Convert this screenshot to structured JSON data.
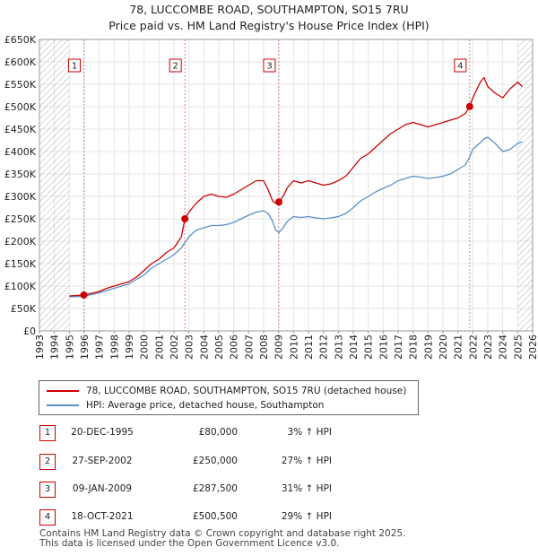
{
  "title_line1": "78, LUCCOMBE ROAD, SOUTHAMPTON, SO15 7RU",
  "title_line2": "Price paid vs. HM Land Registry's House Price Index (HPI)",
  "chart_data": {
    "type": "line",
    "title": "78, LUCCOMBE ROAD, SOUTHAMPTON, SO15 7RU — Price paid vs. HM Land Registry's House Price Index (HPI)",
    "xlabel": "",
    "ylabel": "",
    "xlim": [
      1993,
      2026
    ],
    "ylim": [
      0,
      650000
    ],
    "x_ticks": [
      "1993",
      "1994",
      "1995",
      "1996",
      "1997",
      "1998",
      "1999",
      "2000",
      "2001",
      "2002",
      "2003",
      "2004",
      "2005",
      "2006",
      "2007",
      "2008",
      "2009",
      "2010",
      "2011",
      "2012",
      "2013",
      "2014",
      "2015",
      "2016",
      "2017",
      "2018",
      "2019",
      "2020",
      "2021",
      "2022",
      "2023",
      "2024",
      "2025",
      "2026"
    ],
    "y_tick_values": [
      0,
      50000,
      100000,
      150000,
      200000,
      250000,
      300000,
      350000,
      400000,
      450000,
      500000,
      550000,
      600000,
      650000
    ],
    "y_tick_labels": [
      "£0",
      "£50K",
      "£100K",
      "£150K",
      "£200K",
      "£250K",
      "£300K",
      "£350K",
      "£400K",
      "£450K",
      "£500K",
      "£550K",
      "£600K",
      "£650K"
    ],
    "colors": {
      "property": "#cc0000",
      "hpi": "#5b8ec9",
      "hatch": "#b0b0b0",
      "vline": "#e08080"
    },
    "hatched_ranges": [
      [
        1993.0,
        1995.0
      ],
      [
        2025.0,
        2026.0
      ]
    ],
    "series": [
      {
        "name": "78, LUCCOMBE ROAD, SOUTHAMPTON, SO15 7RU (detached house)",
        "color": "#cc0000",
        "x": [
          1995.0,
          1995.97,
          1996.5,
          1997.0,
          1997.5,
          1998.0,
          1998.5,
          1999.0,
          1999.5,
          2000.0,
          2000.5,
          2001.0,
          2001.5,
          2002.0,
          2002.5,
          2002.73,
          2002.75,
          2003.0,
          2003.5,
          2004.0,
          2004.5,
          2005.0,
          2005.5,
          2006.0,
          2006.5,
          2007.0,
          2007.5,
          2008.0,
          2008.3,
          2008.6,
          2008.8,
          2009.02,
          2009.3,
          2009.6,
          2010.0,
          2010.5,
          2011.0,
          2011.5,
          2012.0,
          2012.5,
          2013.0,
          2013.5,
          2014.0,
          2014.5,
          2015.0,
          2015.5,
          2016.0,
          2016.5,
          2017.0,
          2017.5,
          2018.0,
          2018.5,
          2019.0,
          2019.5,
          2020.0,
          2020.5,
          2021.0,
          2021.5,
          2021.79,
          2022.0,
          2022.5,
          2022.75,
          2023.0,
          2023.5,
          2024.0,
          2024.5,
          2025.0,
          2025.3
        ],
        "y": [
          78000,
          80000,
          84000,
          88000,
          95000,
          100000,
          105000,
          110000,
          120000,
          135000,
          150000,
          160000,
          175000,
          185000,
          210000,
          250000,
          252000,
          265000,
          285000,
          300000,
          305000,
          300000,
          298000,
          305000,
          315000,
          325000,
          335000,
          335000,
          315000,
          290000,
          285000,
          287500,
          300000,
          320000,
          335000,
          330000,
          335000,
          330000,
          325000,
          328000,
          335000,
          345000,
          365000,
          385000,
          395000,
          410000,
          425000,
          440000,
          450000,
          460000,
          465000,
          460000,
          455000,
          460000,
          465000,
          470000,
          475000,
          485000,
          500500,
          520000,
          555000,
          565000,
          545000,
          530000,
          520000,
          540000,
          555000,
          545000
        ]
      },
      {
        "name": "HPI: Average price, detached house, Southampton",
        "color": "#5b8ec9",
        "x": [
          1995.0,
          1995.97,
          1996.5,
          1997.0,
          1997.5,
          1998.0,
          1998.5,
          1999.0,
          1999.5,
          2000.0,
          2000.5,
          2001.0,
          2001.5,
          2002.0,
          2002.5,
          2002.73,
          2003.0,
          2003.5,
          2004.0,
          2004.5,
          2005.0,
          2005.5,
          2006.0,
          2006.5,
          2007.0,
          2007.5,
          2008.0,
          2008.3,
          2008.6,
          2008.8,
          2009.02,
          2009.3,
          2009.6,
          2010.0,
          2010.5,
          2011.0,
          2011.5,
          2012.0,
          2012.5,
          2013.0,
          2013.5,
          2014.0,
          2014.5,
          2015.0,
          2015.5,
          2016.0,
          2016.5,
          2017.0,
          2017.5,
          2018.0,
          2018.5,
          2019.0,
          2019.5,
          2020.0,
          2020.5,
          2021.0,
          2021.5,
          2021.79,
          2022.0,
          2022.5,
          2022.75,
          2023.0,
          2023.5,
          2024.0,
          2024.5,
          2025.0,
          2025.3
        ],
        "y": [
          76000,
          77500,
          81000,
          85000,
          90000,
          95000,
          100000,
          105000,
          115000,
          125000,
          140000,
          150000,
          160000,
          170000,
          185000,
          197000,
          210000,
          225000,
          230000,
          235000,
          235000,
          237000,
          242000,
          250000,
          258000,
          265000,
          268000,
          262000,
          245000,
          225000,
          219000,
          230000,
          245000,
          255000,
          253000,
          255000,
          252000,
          250000,
          252000,
          255000,
          262000,
          275000,
          290000,
          300000,
          310000,
          318000,
          325000,
          335000,
          340000,
          345000,
          343000,
          340000,
          342000,
          345000,
          350000,
          360000,
          370000,
          388000,
          405000,
          420000,
          428000,
          432000,
          418000,
          400000,
          405000,
          418000,
          422000
        ]
      }
    ],
    "sales": [
      {
        "marker": "1",
        "x": 1995.97,
        "y": 80000
      },
      {
        "marker": "2",
        "x": 2002.73,
        "y": 250000
      },
      {
        "marker": "3",
        "x": 2009.02,
        "y": 287500
      },
      {
        "marker": "4",
        "x": 2021.79,
        "y": 500500
      }
    ]
  },
  "legend": {
    "property_label": "78, LUCCOMBE ROAD, SOUTHAMPTON, SO15 7RU (detached house)",
    "hpi_label": "HPI: Average price, detached house, Southampton"
  },
  "sales_table": [
    {
      "num": "1",
      "date": "20-DEC-1995",
      "price": "£80,000",
      "hpi": "3% ↑ HPI"
    },
    {
      "num": "2",
      "date": "27-SEP-2002",
      "price": "£250,000",
      "hpi": "27% ↑ HPI"
    },
    {
      "num": "3",
      "date": "09-JAN-2009",
      "price": "£287,500",
      "hpi": "31% ↑ HPI"
    },
    {
      "num": "4",
      "date": "18-OCT-2021",
      "price": "£500,500",
      "hpi": "29% ↑ HPI"
    }
  ],
  "footer": {
    "line1": "Contains HM Land Registry data © Crown copyright and database right 2025.",
    "line2": "This data is licensed under the Open Government Licence v3.0."
  }
}
